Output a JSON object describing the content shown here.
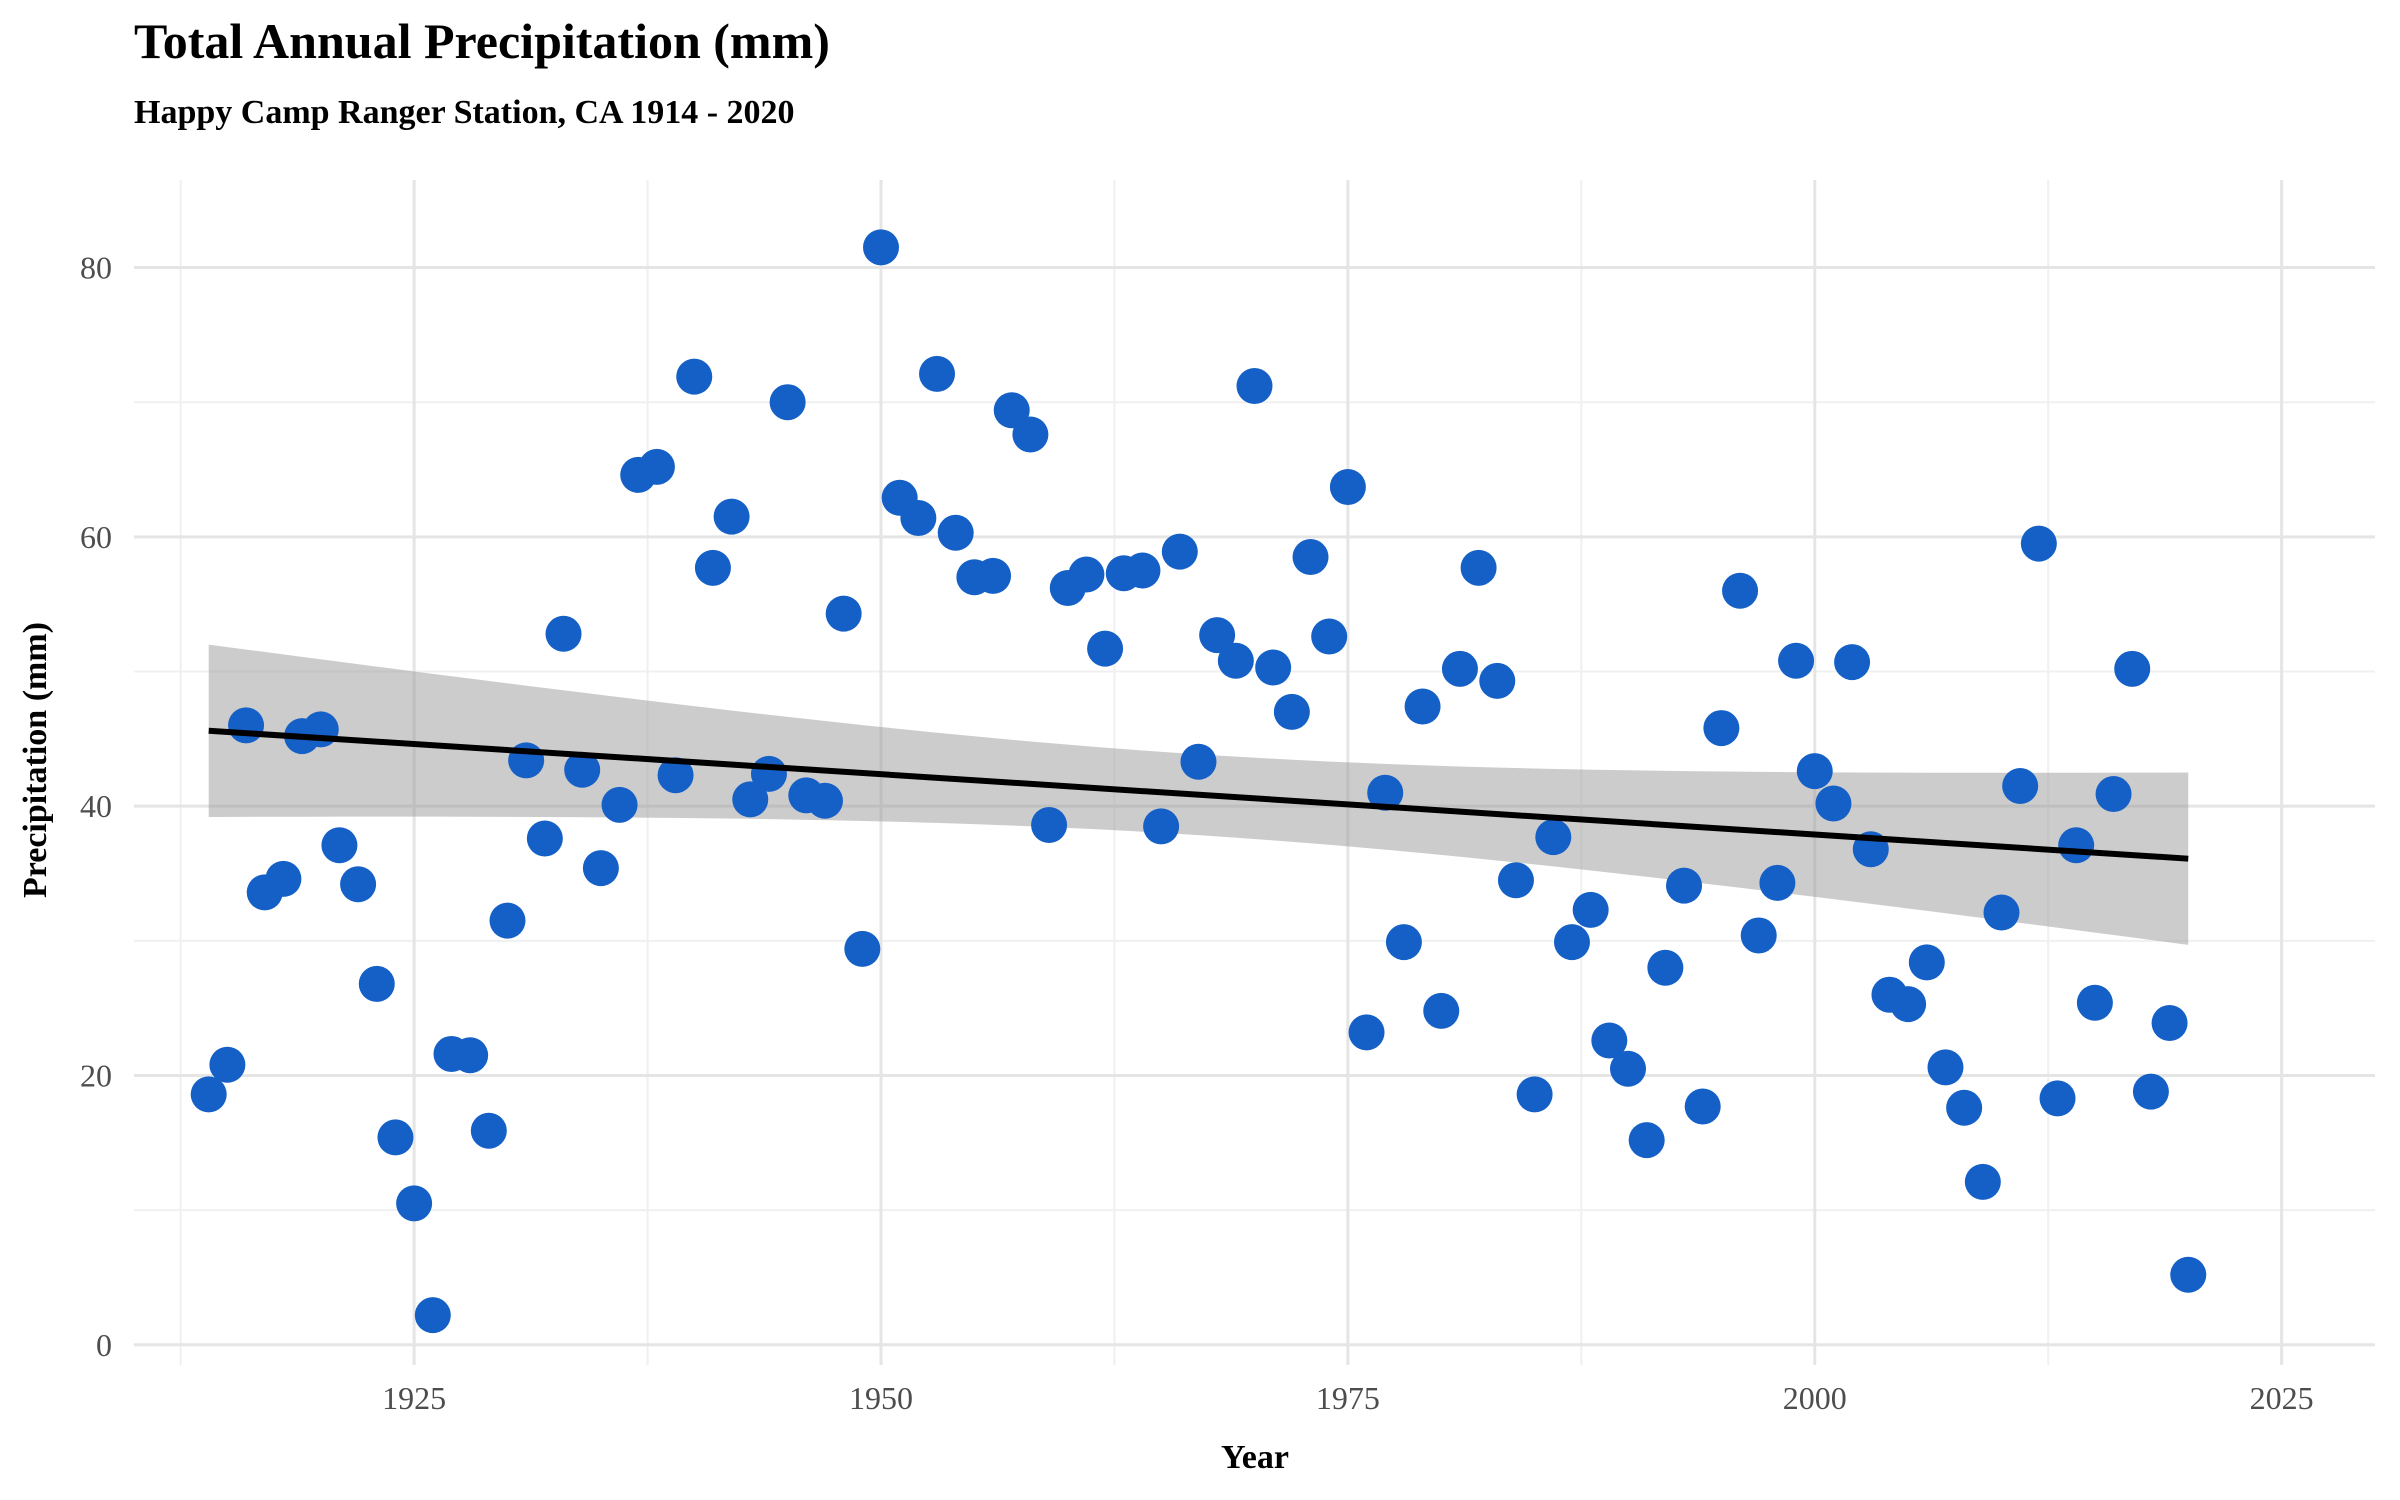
{
  "colors": {
    "point": "#1560C7",
    "trend_line": "#000000",
    "confidence_band": "#999999",
    "grid_major": "#e5e5e5",
    "grid_minor": "#f0f0f0",
    "background": "#ffffff"
  },
  "chart_data": {
    "type": "scatter",
    "title": "Total Annual Precipitation (mm)",
    "subtitle": "Happy Camp Ranger Station, CA 1914 - 2020",
    "xlabel": "Year",
    "ylabel": "Precipitation (mm)",
    "xlim": [
      1910,
      2030
    ],
    "ylim": [
      0,
      85
    ],
    "x_ticks": [
      1925,
      1950,
      1975,
      2000,
      2025
    ],
    "y_ticks": [
      0,
      20,
      40,
      60,
      80
    ],
    "grid": true,
    "legend": "none",
    "series": [
      {
        "x": [
          1914,
          1915,
          1916,
          1917,
          1918,
          1919,
          1920,
          1921,
          1922,
          1923,
          1924,
          1925,
          1926,
          1927,
          1928,
          1929,
          1930,
          1931,
          1932,
          1933,
          1934,
          1935,
          1936,
          1937,
          1938,
          1939,
          1940,
          1941,
          1942,
          1943,
          1944,
          1945,
          1946,
          1947,
          1948,
          1949,
          1950,
          1951,
          1952,
          1953,
          1954,
          1955,
          1956,
          1957,
          1958,
          1959,
          1960,
          1961,
          1962,
          1963,
          1964,
          1965,
          1966,
          1967,
          1968,
          1969,
          1970,
          1971,
          1972,
          1973,
          1974,
          1975,
          1976,
          1977,
          1978,
          1979,
          1980,
          1981,
          1982,
          1983,
          1984,
          1985,
          1986,
          1987,
          1988,
          1989,
          1990,
          1991,
          1992,
          1993,
          1994,
          1995,
          1996,
          1997,
          1998,
          1999,
          2000,
          2001,
          2002,
          2003,
          2004,
          2005,
          2006,
          2007,
          2008,
          2009,
          2010,
          2011,
          2012,
          2013,
          2014,
          2015,
          2016,
          2017,
          2018,
          2019,
          2020
        ],
        "y": [
          18.6,
          20.8,
          46.0,
          33.6,
          34.6,
          45.2,
          45.7,
          37.1,
          34.2,
          26.8,
          15.4,
          10.5,
          2.2,
          21.6,
          21.5,
          15.9,
          31.5,
          43.4,
          37.6,
          52.8,
          42.7,
          35.4,
          40.1,
          64.6,
          65.2,
          42.3,
          71.9,
          57.7,
          61.5,
          40.5,
          42.4,
          70.0,
          40.8,
          40.4,
          54.3,
          29.4,
          81.5,
          62.9,
          61.4,
          72.1,
          60.3,
          57.0,
          57.1,
          69.4,
          67.6,
          38.6,
          56.2,
          57.2,
          51.7,
          57.3,
          57.5,
          38.5,
          58.9,
          43.3,
          52.7,
          50.8,
          71.2,
          50.3,
          47.0,
          58.5,
          52.6,
          63.7,
          23.2,
          41.0,
          29.9,
          47.4,
          24.8,
          50.2,
          57.7,
          49.3,
          34.5,
          18.6,
          37.7,
          29.9,
          32.3,
          22.6,
          20.5,
          15.2,
          28.0,
          34.1,
          17.7,
          45.8,
          56.0,
          30.4,
          34.3,
          50.8,
          42.6,
          40.2,
          50.7,
          36.8,
          26.0,
          25.3,
          28.4,
          20.6,
          17.6,
          12.1,
          32.1,
          41.5,
          59.5,
          18.3,
          37.1,
          25.4,
          40.9,
          50.2,
          18.8,
          23.9,
          5.2
        ]
      }
    ],
    "trend": {
      "type": "linear",
      "x": [
        1914,
        2020
      ],
      "y": [
        45.6,
        36.1
      ],
      "ci_lower": [
        39.3,
        29.8
      ],
      "ci_upper": [
        52.0,
        42.4
      ]
    }
  }
}
